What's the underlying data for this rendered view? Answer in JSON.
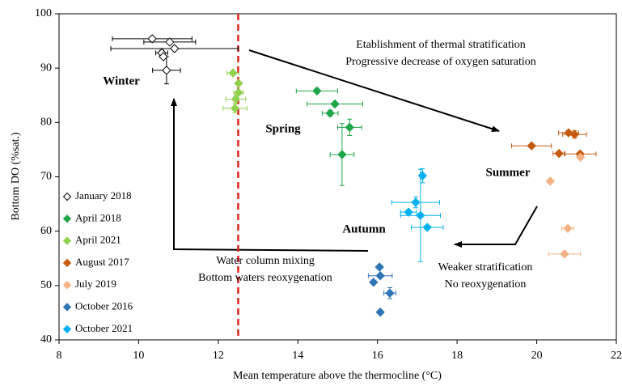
{
  "chart_data": {
    "type": "scatter",
    "xlabel": "Mean temperature above the thermocline (°C)",
    "ylabel": "Bottom DO (%sat.)",
    "xlim": [
      8,
      22
    ],
    "xticks": [
      8,
      10,
      12,
      14,
      16,
      18,
      20,
      22
    ],
    "ylim": [
      40,
      100
    ],
    "yticks": [
      40,
      50,
      60,
      70,
      80,
      90,
      100
    ],
    "vline": 12.5,
    "vline_color": "#e3211c",
    "series": [
      {
        "name": "January 2018",
        "color": "#000000",
        "filled": false,
        "x": [
          10.34,
          10.78,
          10.9,
          10.58,
          10.62,
          10.7
        ],
        "values": [
          95.4,
          94.8,
          93.6,
          92.8,
          92.1,
          89.6
        ],
        "xerr": [
          1.0,
          0.65,
          1.6,
          0.15,
          null,
          0.35
        ],
        "yerr": [
          null,
          null,
          null,
          0.5,
          null,
          2.5
        ]
      },
      {
        "name": "April 2018",
        "color": "#1fa64a",
        "x": [
          14.48,
          14.93,
          14.81,
          15.3,
          15.11
        ],
        "values": [
          85.8,
          83.4,
          81.7,
          79.1,
          74.1
        ],
        "xerr": [
          0.52,
          0.7,
          0.2,
          0.3,
          0.3
        ],
        "yerr": [
          null,
          null,
          0.5,
          1.5,
          5.7
        ]
      },
      {
        "name": "April 2021",
        "color": "#92d050",
        "x": [
          12.37,
          12.51,
          12.51,
          12.44,
          12.42
        ],
        "values": [
          89.1,
          87.2,
          85.5,
          84.3,
          82.6
        ],
        "xerr": [
          0.15,
          null,
          0.12,
          0.25,
          0.3
        ],
        "yerr": [
          null,
          null,
          null,
          0.8,
          0.8
        ]
      },
      {
        "name": "August 2017",
        "color": "#c55a11",
        "x": [
          19.87,
          20.8,
          20.95,
          20.56,
          21.09
        ],
        "values": [
          75.7,
          78.1,
          77.8,
          74.3,
          74.2
        ],
        "xerr": [
          0.5,
          0.25,
          0.3,
          0.15,
          0.4
        ],
        "yerr": [
          null,
          0.4,
          0.7,
          null,
          null
        ]
      },
      {
        "name": "July 2019",
        "color": "#f4b183",
        "x": [
          21.1,
          20.34,
          20.78,
          20.7
        ],
        "values": [
          73.6,
          69.2,
          60.5,
          55.8
        ],
        "xerr": [
          null,
          null,
          0.15,
          0.4
        ],
        "yerr": [
          null,
          null,
          null,
          null
        ]
      },
      {
        "name": "October 2016",
        "color": "#2e75b6",
        "x": [
          16.05,
          16.07,
          15.9,
          16.31,
          16.07
        ],
        "values": [
          53.4,
          51.8,
          50.6,
          48.6,
          45.1
        ],
        "xerr": [
          null,
          0.3,
          null,
          0.15,
          null
        ],
        "yerr": [
          null,
          null,
          null,
          1.0,
          null
        ]
      },
      {
        "name": "October 2021",
        "color": "#00b0f0",
        "x": [
          17.13,
          16.96,
          16.78,
          17.08,
          17.25
        ],
        "values": [
          70.2,
          65.3,
          63.5,
          62.9,
          60.7
        ],
        "xerr": [
          null,
          0.6,
          0.2,
          0.5,
          0.4
        ],
        "yerr": [
          1.3,
          1.0,
          null,
          8.5,
          null
        ]
      }
    ],
    "annotations": [
      "Winter",
      "Spring",
      "Summer",
      "Autumn",
      "Etablishment of thermal stratification",
      "Progressive decrease of oxygen saturation",
      "Water column mixing",
      "Bottom waters reoxygenation",
      "Weaker stratification",
      "No reoxygenation"
    ]
  }
}
